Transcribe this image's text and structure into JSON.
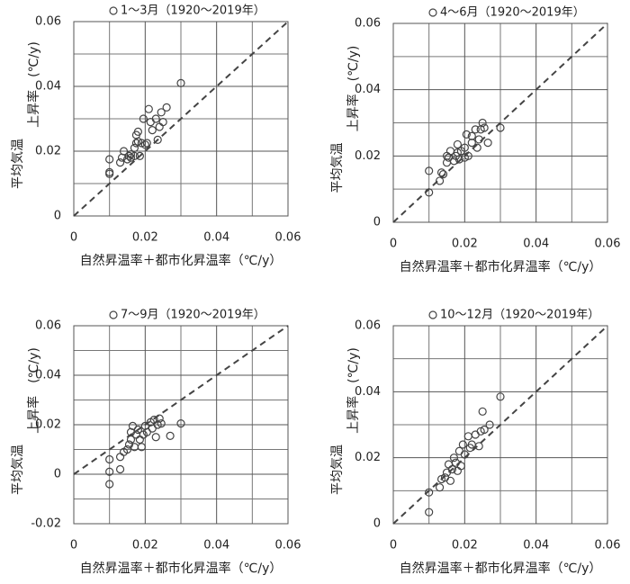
{
  "chart_data": [
    {
      "type": "scatter",
      "xlabel": "自然昇温率＋都市化昇温率（℃/y）",
      "ylabel": [
        "平均気温",
        "上昇率　(℃/y)"
      ],
      "xlim": [
        0,
        0.06
      ],
      "ylim": [
        0,
        0.06
      ],
      "xticks": [
        0,
        0.02,
        0.04,
        0.06
      ],
      "yticks": [
        0,
        0.02,
        0.04,
        0.06
      ],
      "xminor": [
        0.01,
        0.03,
        0.05
      ],
      "yminor": [
        0.01,
        0.03,
        0.05
      ],
      "grid": true,
      "x": [
        0.01,
        0.01,
        0.01,
        0.013,
        0.0135,
        0.014,
        0.015,
        0.0155,
        0.016,
        0.016,
        0.017,
        0.017,
        0.0175,
        0.0175,
        0.018,
        0.018,
        0.0185,
        0.019,
        0.0195,
        0.02,
        0.0205,
        0.021,
        0.0215,
        0.022,
        0.023,
        0.0235,
        0.024,
        0.0245,
        0.025,
        0.026,
        0.03
      ],
      "series": [
        {
          "name": "1～3月（1920～2019年）",
          "color": "#444444",
          "values": [
            0.0175,
            0.0135,
            0.013,
            0.0165,
            0.018,
            0.02,
            0.0175,
            0.0185,
            0.018,
            0.019,
            0.0185,
            0.021,
            0.0225,
            0.025,
            0.026,
            0.023,
            0.0185,
            0.0225,
            0.03,
            0.022,
            0.0225,
            0.033,
            0.029,
            0.0265,
            0.03,
            0.0235,
            0.0275,
            0.032,
            0.029,
            0.0335,
            0.041
          ]
        }
      ]
    },
    {
      "type": "scatter",
      "xlabel": "自然昇温率＋都市化昇温率（℃/y）",
      "ylabel": [
        "平均気温",
        "上昇率　(℃/y)"
      ],
      "xlim": [
        0,
        0.06
      ],
      "ylim": [
        0,
        0.06
      ],
      "xticks": [
        0,
        0.02,
        0.04,
        0.06
      ],
      "yticks": [
        0,
        0.02,
        0.04,
        0.06
      ],
      "xminor": [
        0.01,
        0.03,
        0.05
      ],
      "yminor": [
        0.01,
        0.03,
        0.05
      ],
      "grid": true,
      "x": [
        0.01,
        0.01,
        0.013,
        0.0135,
        0.014,
        0.015,
        0.015,
        0.0155,
        0.016,
        0.017,
        0.0175,
        0.018,
        0.018,
        0.0185,
        0.019,
        0.02,
        0.02,
        0.0205,
        0.021,
        0.022,
        0.022,
        0.023,
        0.0235,
        0.024,
        0.0245,
        0.025,
        0.0255,
        0.0265,
        0.03
      ],
      "series": [
        {
          "name": "4～6月（1920～2019年）",
          "color": "#444444",
          "values": [
            0.009,
            0.0155,
            0.0125,
            0.015,
            0.0145,
            0.018,
            0.02,
            0.0195,
            0.0215,
            0.0185,
            0.02,
            0.021,
            0.0235,
            0.019,
            0.0215,
            0.0195,
            0.0225,
            0.0265,
            0.02,
            0.026,
            0.024,
            0.028,
            0.0225,
            0.025,
            0.028,
            0.03,
            0.0285,
            0.024,
            0.0285
          ]
        }
      ]
    },
    {
      "type": "scatter",
      "xlabel": "自然昇温率＋都市化昇温率（℃/y）",
      "ylabel": [
        "平均気温",
        "上昇率　(℃/y)"
      ],
      "xlim": [
        0,
        0.06
      ],
      "ylim": [
        -0.02,
        0.06
      ],
      "xticks": [
        0,
        0.02,
        0.04,
        0.06
      ],
      "yticks": [
        -0.02,
        0,
        0.02,
        0.04,
        0.06
      ],
      "xminor": [
        0.01,
        0.03,
        0.05
      ],
      "yminor": [
        -0.01,
        0.01,
        0.03,
        0.05
      ],
      "grid": true,
      "x": [
        0.01,
        0.01,
        0.01,
        0.013,
        0.013,
        0.014,
        0.015,
        0.0155,
        0.016,
        0.016,
        0.0165,
        0.017,
        0.0175,
        0.018,
        0.0185,
        0.019,
        0.0195,
        0.02,
        0.0205,
        0.0215,
        0.022,
        0.0225,
        0.023,
        0.0235,
        0.024,
        0.0245,
        0.027,
        0.03
      ],
      "series": [
        {
          "name": "7～9月（1920～2019年）",
          "color": "#444444",
          "values": [
            -0.004,
            0.001,
            0.006,
            0.002,
            0.007,
            0.009,
            0.01,
            0.012,
            0.014,
            0.017,
            0.0195,
            0.011,
            0.016,
            0.018,
            0.014,
            0.011,
            0.016,
            0.0195,
            0.017,
            0.021,
            0.0185,
            0.022,
            0.015,
            0.02,
            0.0225,
            0.0205,
            0.0155,
            0.0205
          ]
        }
      ]
    },
    {
      "type": "scatter",
      "xlabel": "自然昇温率＋都市化昇温率（℃/y）",
      "ylabel": [
        "平均気温",
        "上昇率　(℃/y)"
      ],
      "xlim": [
        0,
        0.06
      ],
      "ylim": [
        0,
        0.06
      ],
      "xticks": [
        0,
        0.02,
        0.04,
        0.06
      ],
      "yticks": [
        0,
        0.02,
        0.04,
        0.06
      ],
      "xminor": [
        0.01,
        0.03,
        0.05
      ],
      "yminor": [
        0.01,
        0.03,
        0.05
      ],
      "grid": true,
      "x": [
        0.01,
        0.01,
        0.013,
        0.0135,
        0.0145,
        0.015,
        0.0155,
        0.016,
        0.0165,
        0.017,
        0.0175,
        0.018,
        0.0185,
        0.019,
        0.0195,
        0.02,
        0.021,
        0.0215,
        0.022,
        0.023,
        0.024,
        0.0245,
        0.025,
        0.0255,
        0.027,
        0.03
      ],
      "series": [
        {
          "name": "10～12月（1920～2019年）",
          "color": "#444444",
          "values": [
            0.0035,
            0.0095,
            0.011,
            0.0135,
            0.014,
            0.0155,
            0.018,
            0.013,
            0.0165,
            0.02,
            0.0185,
            0.016,
            0.022,
            0.0175,
            0.024,
            0.021,
            0.0265,
            0.023,
            0.024,
            0.027,
            0.0235,
            0.028,
            0.034,
            0.0285,
            0.03,
            0.0385
          ]
        }
      ]
    }
  ]
}
